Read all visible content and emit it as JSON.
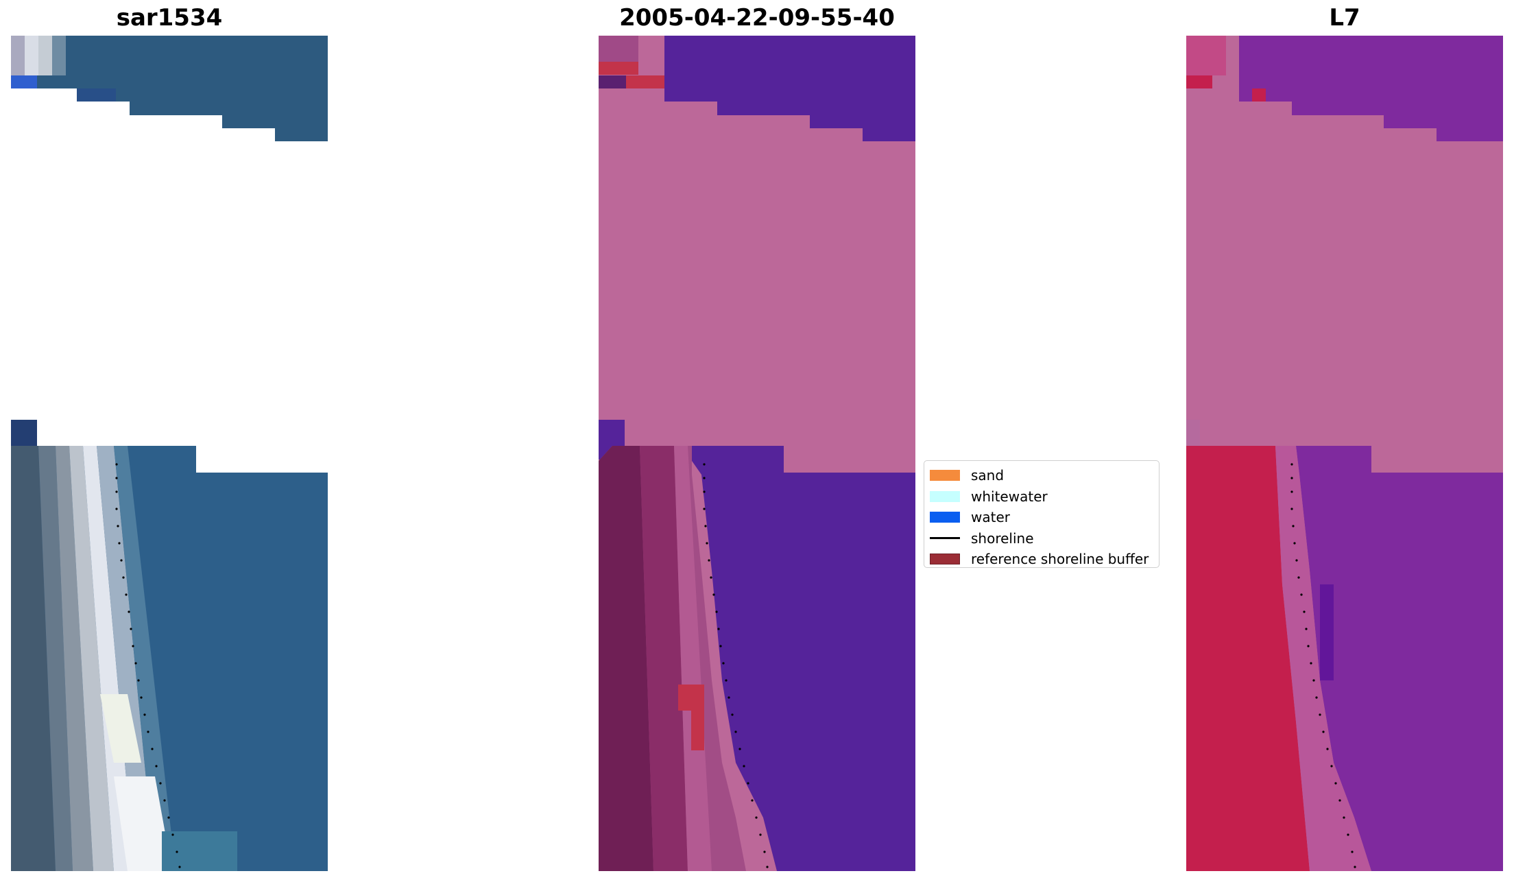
{
  "panels": [
    {
      "title": "sar1534"
    },
    {
      "title": "2005-04-22-09-55-40"
    },
    {
      "title": "L7"
    }
  ],
  "legend": {
    "items": [
      {
        "label": "sand",
        "kind": "patch",
        "color": "#f58b3c"
      },
      {
        "label": "whitewater",
        "kind": "patch",
        "color": "#c6ffff"
      },
      {
        "label": "water",
        "kind": "patch",
        "color": "#0a5ef0"
      },
      {
        "label": "shoreline",
        "kind": "line",
        "color": "#000000"
      },
      {
        "label": "reference shoreline buffer",
        "kind": "patch",
        "color": "#9b2d36"
      }
    ]
  },
  "colors": {
    "background": "#ffffff",
    "rgb_water": "#2c5f88",
    "rgb_beach": "#dfe4ee",
    "classified_water": "#55239a",
    "classified_cloud": "#bc6899",
    "classified_sand": "#762058",
    "classified_whitewater": "#c3334a",
    "l7_vegetation": "#c41f4d",
    "l7_water": "#7f2a9e",
    "l7_cloud": "#bc6899"
  }
}
